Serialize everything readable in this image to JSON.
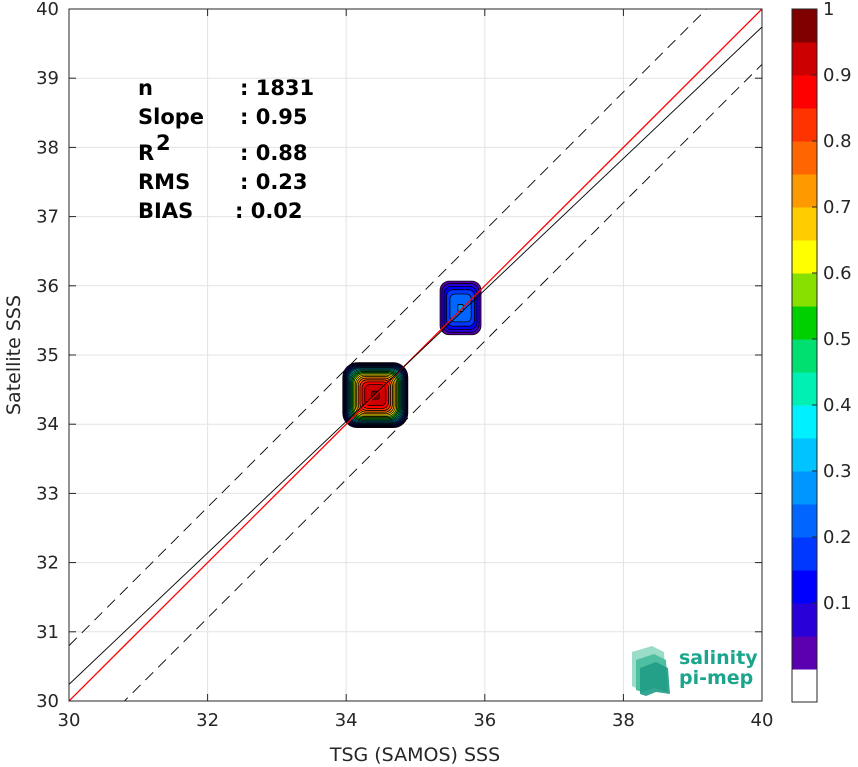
{
  "chart_data": {
    "type": "heatmap",
    "xlabel": "TSG (SAMOS) SSS",
    "ylabel": "Satellite SSS",
    "xlim": [
      30,
      40
    ],
    "ylim": [
      30,
      40
    ],
    "x_ticks": [
      "30",
      "32",
      "34",
      "36",
      "38",
      "40"
    ],
    "y_ticks": [
      "30",
      "31",
      "32",
      "33",
      "34",
      "35",
      "36",
      "37",
      "38",
      "39",
      "40"
    ],
    "grid": true,
    "stats": [
      {
        "label": "n",
        "value": ": 1831"
      },
      {
        "label": "Slope",
        "value": ": 0.95"
      },
      {
        "label": "R",
        "sup": "2",
        "value": ": 0.88"
      },
      {
        "label": "RMS",
        "value": ": 0.23"
      },
      {
        "label": "BIAS",
        "value": ": 0.02"
      }
    ],
    "lines": [
      {
        "name": "1:1",
        "color": "#ff0000",
        "style": "solid",
        "points": [
          [
            30,
            30
          ],
          [
            40,
            40
          ]
        ]
      },
      {
        "name": "regression",
        "color": "#000000",
        "style": "solid",
        "points": [
          [
            30,
            30.24
          ],
          [
            40,
            39.74
          ]
        ]
      },
      {
        "name": "upper-bound",
        "color": "#000000",
        "style": "dashed",
        "points": [
          [
            30,
            30.8
          ],
          [
            40,
            40.8
          ]
        ]
      },
      {
        "name": "lower-bound",
        "color": "#000000",
        "style": "dashed",
        "points": [
          [
            30,
            29.2
          ],
          [
            40,
            39.2
          ]
        ]
      }
    ],
    "clusters": [
      {
        "center": [
          34.42,
          34.42
        ],
        "peak": 1.0,
        "rx": 0.48,
        "ry": 0.48
      },
      {
        "center": [
          35.65,
          35.68
        ],
        "peak": 0.3,
        "rx": 0.32,
        "ry": 0.42
      }
    ],
    "colorbar": {
      "ticks": [
        "0.1",
        "0.2",
        "0.3",
        "0.4",
        "0.5",
        "0.6",
        "0.7",
        "0.8",
        "0.9",
        "1"
      ],
      "tick_values": [
        0.1,
        0.2,
        0.3,
        0.4,
        0.5,
        0.6,
        0.7,
        0.8,
        0.9,
        1.0
      ],
      "levels": [
        0.05,
        0.1,
        0.15,
        0.2,
        0.25,
        0.3,
        0.35,
        0.4,
        0.45,
        0.5,
        0.55,
        0.6,
        0.65,
        0.7,
        0.75,
        0.8,
        0.85,
        0.9,
        0.95,
        1.0
      ],
      "colors": [
        "#ffffff",
        "#5b00b0",
        "#2a00d8",
        "#0000ff",
        "#0038ff",
        "#0066ff",
        "#0096ff",
        "#00c3ff",
        "#00f0ff",
        "#00f0b4",
        "#00e070",
        "#00d000",
        "#88e000",
        "#ffff00",
        "#ffcc00",
        "#ff9900",
        "#ff6600",
        "#ff3300",
        "#ff0000",
        "#cc0000",
        "#800000"
      ]
    }
  },
  "logo": {
    "line1": "salinity",
    "line2": "pi-mep",
    "color": "#1aa58c"
  }
}
